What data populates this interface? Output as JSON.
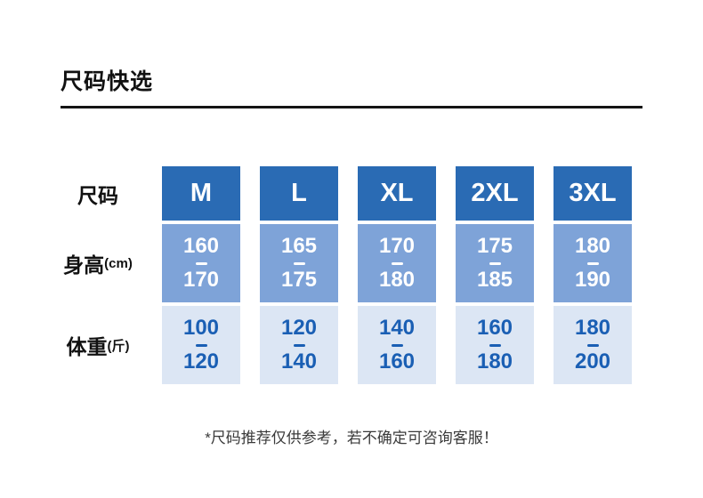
{
  "page": {
    "title": "尺码快选",
    "footnote": "*尺码推荐仅供参考，若不确定可咨询客服！"
  },
  "table": {
    "rows": [
      {
        "label": "尺码",
        "suffix": ""
      },
      {
        "label": "身高",
        "suffix": "(cm)"
      },
      {
        "label": "体重",
        "suffix": "(斤)"
      }
    ],
    "sizes": [
      "M",
      "L",
      "XL",
      "2XL",
      "3XL"
    ],
    "height_ranges": [
      [
        "160",
        "170"
      ],
      [
        "165",
        "175"
      ],
      [
        "170",
        "180"
      ],
      [
        "175",
        "185"
      ],
      [
        "180",
        "190"
      ]
    ],
    "weight_ranges": [
      [
        "100",
        "120"
      ],
      [
        "120",
        "140"
      ],
      [
        "140",
        "160"
      ],
      [
        "160",
        "180"
      ],
      [
        "180",
        "200"
      ]
    ]
  },
  "colors": {
    "size_header_bg": "#2a6bb4",
    "height_row_bg": "#7ea3d8",
    "weight_row_bg": "#dce6f4",
    "weight_text": "#1a5fb4"
  }
}
